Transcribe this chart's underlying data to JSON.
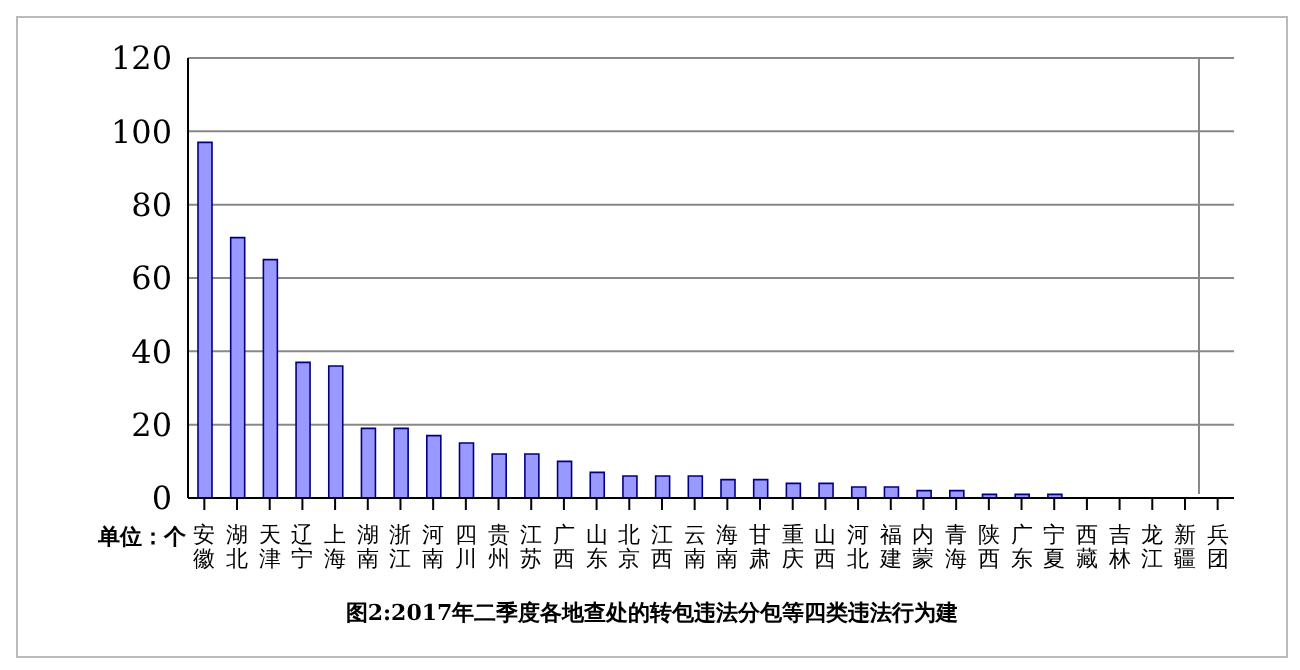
{
  "chart_data": {
    "type": "bar",
    "title": "图2:2017年二季度各地查处的转包违法分包等四类违法行为建",
    "annotations": [
      "单位：个"
    ],
    "categories": [
      "安徽",
      "湖北",
      "天津",
      "辽宁",
      "上海",
      "湖南",
      "浙江",
      "河南",
      "四川",
      "贵州",
      "江苏",
      "广西",
      "山东",
      "北京",
      "江西",
      "云南",
      "海南",
      "甘肃",
      "重庆",
      "山西",
      "河北",
      "福建",
      "内蒙",
      "青海",
      "陕西",
      "广东",
      "宁夏",
      "西藏",
      "吉林",
      "龙江",
      "新疆",
      "兵团"
    ],
    "values": [
      97,
      71,
      65,
      37,
      36,
      19,
      19,
      17,
      15,
      12,
      12,
      10,
      7,
      6,
      6,
      6,
      5,
      5,
      4,
      4,
      3,
      3,
      2,
      2,
      1,
      1,
      1,
      0,
      0,
      0,
      0,
      0
    ],
    "color": "#9999ff",
    "ylim": [
      0,
      120
    ],
    "yticks": [
      0,
      20,
      40,
      60,
      80,
      100,
      120
    ],
    "grid": "y"
  }
}
